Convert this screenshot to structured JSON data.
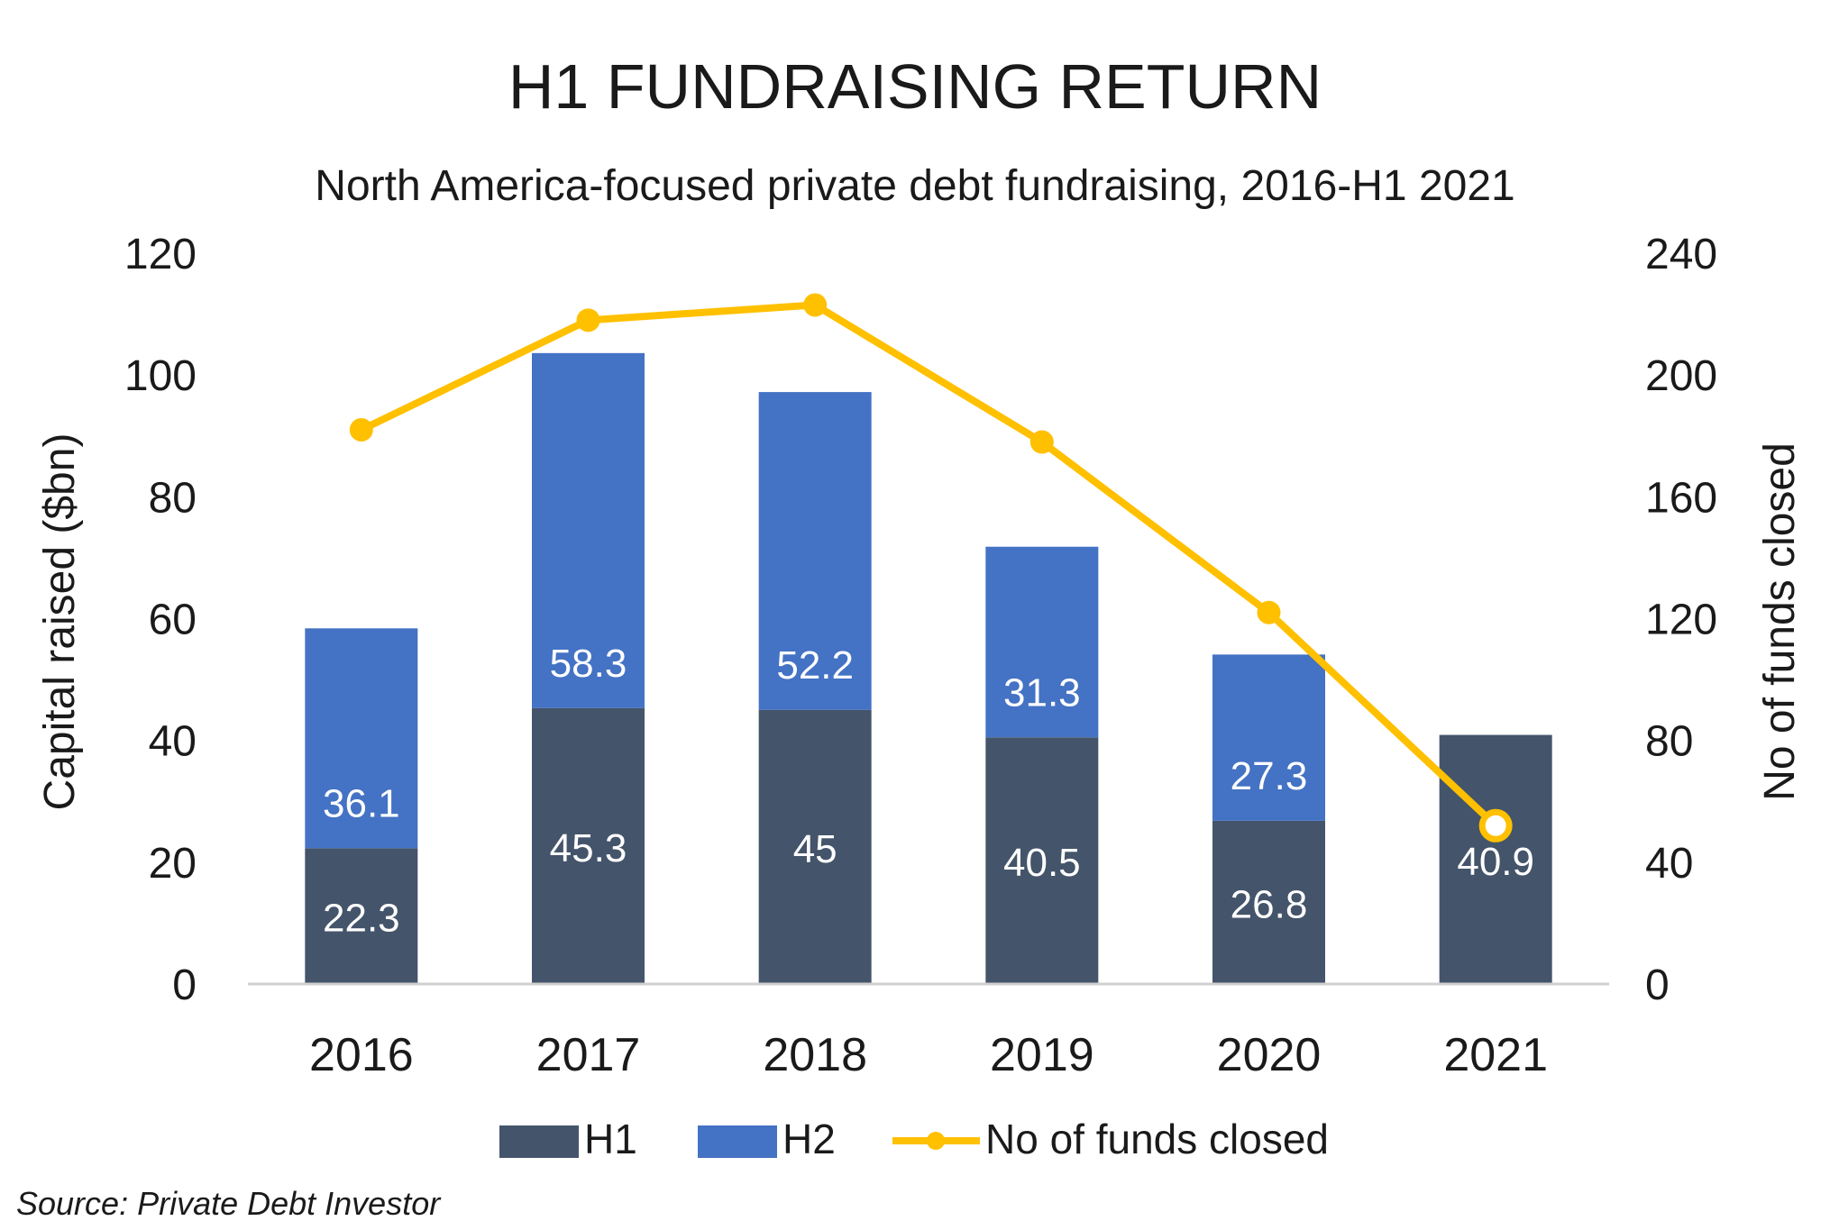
{
  "chart_data": {
    "type": "bar",
    "title": "H1 FUNDRAISING RETURN",
    "subtitle": "North America-focused private debt fundraising, 2016-H1 2021",
    "categories": [
      "2016",
      "2017",
      "2018",
      "2019",
      "2020",
      "2021"
    ],
    "stacked": true,
    "series": [
      {
        "name": "H1",
        "type": "bar",
        "color": "#44546a",
        "values": [
          22.3,
          45.3,
          45,
          40.5,
          26.8,
          40.9
        ]
      },
      {
        "name": "H2",
        "type": "bar",
        "color": "#4472c4",
        "values": [
          36.1,
          58.3,
          52.2,
          31.3,
          27.3,
          null
        ]
      },
      {
        "name": "No of funds closed",
        "type": "line",
        "axis": "right",
        "color": "#ffc000",
        "values": [
          182,
          218,
          223,
          178,
          122,
          52
        ]
      }
    ],
    "data_labels": {
      "H1": [
        "22.3",
        "45.3",
        "45",
        "40.5",
        "26.8",
        "40.9"
      ],
      "H2": [
        "36.1",
        "58.3",
        "52.2",
        "31.3",
        "27.3",
        ""
      ]
    },
    "ylabel": "Capital raised ($bn)",
    "y2label": "No of funds closed",
    "ylim": [
      0,
      120
    ],
    "y2lim": [
      0,
      240
    ],
    "yticks": [
      "0",
      "20",
      "40",
      "60",
      "80",
      "100",
      "120"
    ],
    "y2ticks": [
      "0",
      "40",
      "80",
      "120",
      "160",
      "200",
      "240"
    ],
    "legend": {
      "placement": "bottom",
      "entries": [
        "H1",
        "H2",
        "No of funds closed"
      ]
    },
    "grid": false
  },
  "source": "Source: Private Debt Investor"
}
